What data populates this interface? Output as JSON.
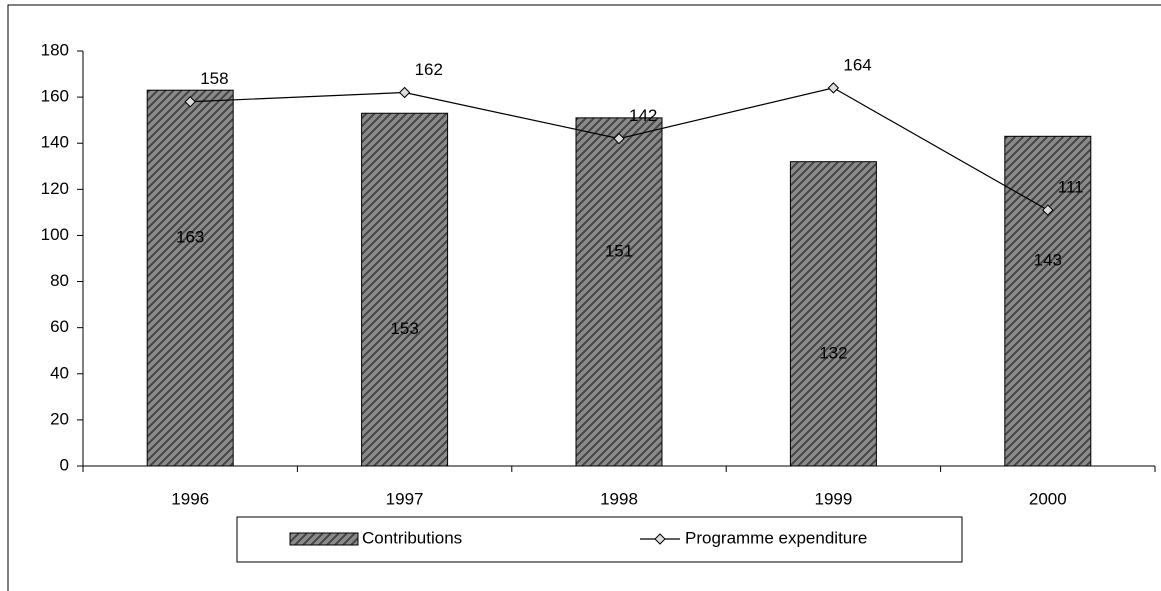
{
  "chart_data": {
    "type": "bar",
    "categories": [
      "1996",
      "1997",
      "1998",
      "1999",
      "2000"
    ],
    "series": [
      {
        "name": "Contributions",
        "type": "bar",
        "color": "#7a7a7a",
        "values": [
          163,
          153,
          151,
          132,
          143
        ]
      },
      {
        "name": "Programme expenditure",
        "type": "line",
        "color": "#000000",
        "values": [
          158,
          162,
          142,
          164,
          111
        ]
      }
    ],
    "ylim": [
      0,
      180
    ],
    "yticks": [
      0,
      20,
      40,
      60,
      80,
      100,
      120,
      140,
      160,
      180
    ],
    "legend": "bottom"
  }
}
